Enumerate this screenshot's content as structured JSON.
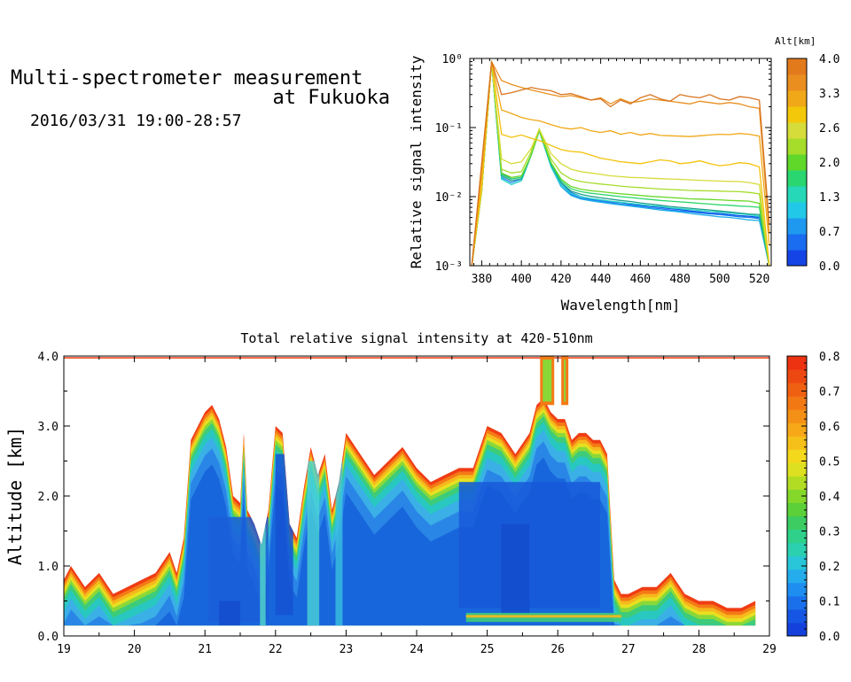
{
  "header": {
    "title_line1": "Multi-spectrometer measurement",
    "title_line2": "at Fukuoka",
    "date_range": "2016/03/31 19:00-28:57"
  },
  "chart_data": [
    {
      "type": "line",
      "title": "",
      "xlabel": "Wavelength[nm]",
      "ylabel": "Relative signal intensity",
      "yscale": "log",
      "xlim": [
        374,
        526
      ],
      "ylim": [
        0.001,
        1
      ],
      "x_ticks": [
        "380",
        "400",
        "420",
        "440",
        "460",
        "480",
        "500",
        "520"
      ],
      "y_ticks": [
        "10⁻³",
        "10⁻²",
        "10⁻¹",
        "10⁰"
      ],
      "legend_title": "Alt[km]",
      "colorbar_labels": [
        "0.0",
        "0.7",
        "1.3",
        "2.0",
        "2.6",
        "3.3",
        "4.0"
      ],
      "x": [
        375,
        380,
        385,
        390,
        395,
        400,
        405,
        409,
        415,
        420,
        425,
        430,
        435,
        440,
        445,
        450,
        455,
        460,
        465,
        470,
        475,
        480,
        485,
        490,
        495,
        500,
        505,
        510,
        515,
        520,
        525
      ],
      "series": [
        {
          "color": "#0c4fe8",
          "values": [
            0.001,
            0.012,
            0.9,
            0.022,
            0.018,
            0.019,
            0.04,
            0.09,
            0.03,
            0.016,
            0.0115,
            0.01,
            0.0093,
            0.0089,
            0.0085,
            0.0082,
            0.0078,
            0.0075,
            0.0072,
            0.007,
            0.0067,
            0.0065,
            0.0062,
            0.006,
            0.0058,
            0.0057,
            0.0055,
            0.0053,
            0.0052,
            0.005,
            0.001
          ]
        },
        {
          "color": "#1a7ef0",
          "values": [
            0.001,
            0.012,
            0.9,
            0.019,
            0.016,
            0.018,
            0.04,
            0.09,
            0.028,
            0.015,
            0.0108,
            0.0095,
            0.009,
            0.0086,
            0.0082,
            0.0078,
            0.0075,
            0.0072,
            0.0069,
            0.0067,
            0.0064,
            0.0062,
            0.006,
            0.0058,
            0.0056,
            0.0055,
            0.0053,
            0.0051,
            0.005,
            0.0048,
            0.001
          ]
        },
        {
          "color": "#1fb0ea",
          "values": [
            0.001,
            0.012,
            0.9,
            0.018,
            0.015,
            0.017,
            0.04,
            0.09,
            0.027,
            0.014,
            0.0104,
            0.0092,
            0.0087,
            0.0083,
            0.0079,
            0.0076,
            0.0073,
            0.007,
            0.0067,
            0.0064,
            0.0062,
            0.006,
            0.0057,
            0.0055,
            0.0053,
            0.0051,
            0.005,
            0.0048,
            0.0046,
            0.0045,
            0.001
          ]
        },
        {
          "color": "#26d8c8",
          "values": [
            0.001,
            0.012,
            0.9,
            0.018,
            0.015,
            0.017,
            0.04,
            0.09,
            0.027,
            0.015,
            0.0112,
            0.01,
            0.0094,
            0.009,
            0.0086,
            0.0083,
            0.008,
            0.0077,
            0.0074,
            0.0072,
            0.0069,
            0.0067,
            0.0065,
            0.0063,
            0.0061,
            0.006,
            0.0058,
            0.0056,
            0.0055,
            0.0052,
            0.001
          ]
        },
        {
          "color": "#1f9e8f",
          "values": [
            0.001,
            0.012,
            0.9,
            0.02,
            0.017,
            0.018,
            0.04,
            0.09,
            0.029,
            0.016,
            0.012,
            0.0108,
            0.0101,
            0.0096,
            0.0092,
            0.0088,
            0.0085,
            0.0081,
            0.0078,
            0.0075,
            0.0072,
            0.007,
            0.0068,
            0.0066,
            0.0064,
            0.0062,
            0.006,
            0.0058,
            0.0056,
            0.0055,
            0.001
          ]
        },
        {
          "color": "#2ad66b",
          "values": [
            0.001,
            0.012,
            0.9,
            0.021,
            0.018,
            0.019,
            0.04,
            0.09,
            0.03,
            0.017,
            0.013,
            0.0118,
            0.0112,
            0.0108,
            0.0104,
            0.01,
            0.0097,
            0.0094,
            0.0091,
            0.0088,
            0.0086,
            0.0084,
            0.0082,
            0.008,
            0.0078,
            0.0076,
            0.0075,
            0.0073,
            0.0072,
            0.007,
            0.001
          ]
        },
        {
          "color": "#6ad82a",
          "values": [
            0.001,
            0.012,
            0.9,
            0.022,
            0.019,
            0.02,
            0.04,
            0.09,
            0.031,
            0.018,
            0.014,
            0.0128,
            0.0122,
            0.0118,
            0.0114,
            0.011,
            0.0107,
            0.0104,
            0.0101,
            0.0099,
            0.0097,
            0.0095,
            0.0093,
            0.0092,
            0.0091,
            0.009,
            0.0088,
            0.0087,
            0.0086,
            0.008,
            0.001
          ]
        },
        {
          "color": "#a6dc2a",
          "values": [
            0.001,
            0.012,
            0.9,
            0.025,
            0.022,
            0.023,
            0.045,
            0.095,
            0.035,
            0.022,
            0.018,
            0.0165,
            0.0158,
            0.0152,
            0.0147,
            0.0142,
            0.0138,
            0.0135,
            0.0132,
            0.0129,
            0.0127,
            0.0125,
            0.0123,
            0.0122,
            0.0121,
            0.012,
            0.0119,
            0.0118,
            0.0115,
            0.011,
            0.001
          ]
        },
        {
          "color": "#d6dc3a",
          "values": [
            0.001,
            0.012,
            0.9,
            0.035,
            0.03,
            0.032,
            0.05,
            0.095,
            0.042,
            0.03,
            0.025,
            0.023,
            0.022,
            0.021,
            0.02,
            0.0195,
            0.019,
            0.0188,
            0.0185,
            0.0182,
            0.018,
            0.0178,
            0.0175,
            0.0172,
            0.017,
            0.0168,
            0.0166,
            0.0165,
            0.016,
            0.015,
            0.001
          ]
        },
        {
          "color": "#f4c20a",
          "values": [
            0.001,
            0.014,
            0.9,
            0.08,
            0.072,
            0.078,
            0.07,
            0.065,
            0.055,
            0.048,
            0.045,
            0.044,
            0.04,
            0.036,
            0.034,
            0.032,
            0.031,
            0.03,
            0.032,
            0.034,
            0.033,
            0.03,
            0.031,
            0.033,
            0.03,
            0.028,
            0.029,
            0.031,
            0.03,
            0.027,
            0.001
          ]
        },
        {
          "color": "#f0a818",
          "values": [
            0.001,
            0.02,
            0.9,
            0.18,
            0.16,
            0.14,
            0.13,
            0.125,
            0.11,
            0.1,
            0.095,
            0.1,
            0.09,
            0.085,
            0.09,
            0.08,
            0.085,
            0.078,
            0.082,
            0.077,
            0.076,
            0.075,
            0.074,
            0.076,
            0.078,
            0.08,
            0.079,
            0.082,
            0.08,
            0.075,
            0.002
          ]
        },
        {
          "color": "#e89020",
          "values": [
            0.001,
            0.03,
            0.9,
            0.48,
            0.42,
            0.38,
            0.35,
            0.33,
            0.3,
            0.28,
            0.29,
            0.27,
            0.25,
            0.27,
            0.22,
            0.26,
            0.23,
            0.24,
            0.26,
            0.25,
            0.24,
            0.23,
            0.22,
            0.24,
            0.23,
            0.22,
            0.23,
            0.22,
            0.2,
            0.19,
            0.003
          ]
        },
        {
          "color": "#d8741e",
          "values": [
            0.001,
            0.03,
            0.9,
            0.3,
            0.32,
            0.35,
            0.38,
            0.36,
            0.34,
            0.3,
            0.31,
            0.28,
            0.25,
            0.26,
            0.2,
            0.25,
            0.22,
            0.27,
            0.3,
            0.26,
            0.24,
            0.3,
            0.28,
            0.27,
            0.3,
            0.26,
            0.25,
            0.28,
            0.27,
            0.25,
            0.004
          ]
        }
      ]
    },
    {
      "type": "heatmap",
      "title": "Total relative signal intensity at 420-510nm",
      "xlabel": "",
      "ylabel": "Altitude [km]",
      "xlim": [
        19,
        29
      ],
      "ylim": [
        0,
        4
      ],
      "x_ticks": [
        "19",
        "20",
        "21",
        "22",
        "23",
        "24",
        "25",
        "26",
        "27",
        "28",
        "29"
      ],
      "y_ticks": [
        "0.0",
        "1.0",
        "2.0",
        "3.0",
        "4.0"
      ],
      "colorbar_labels": [
        "0.0",
        "0.1",
        "0.2",
        "0.3",
        "0.4",
        "0.5",
        "0.6",
        "0.7",
        "0.8"
      ],
      "cloud_base_km": 0.15,
      "cloud_top_profile_km": {
        "time": [
          19.0,
          19.1,
          19.3,
          19.5,
          19.7,
          19.9,
          20.1,
          20.3,
          20.5,
          20.6,
          20.7,
          20.8,
          20.9,
          21.0,
          21.1,
          21.2,
          21.3,
          21.4,
          21.5,
          21.55,
          21.6,
          21.7,
          21.8,
          21.9,
          22.0,
          22.1,
          22.2,
          22.3,
          22.4,
          22.5,
          22.6,
          22.7,
          22.8,
          22.9,
          23.0,
          23.2,
          23.4,
          23.6,
          23.8,
          24.0,
          24.2,
          24.4,
          24.6,
          24.8,
          25.0,
          25.2,
          25.4,
          25.6,
          25.7,
          25.8,
          25.9,
          26.0,
          26.1,
          26.2,
          26.3,
          26.4,
          26.5,
          26.6,
          26.7,
          26.8,
          26.9,
          27.0,
          27.2,
          27.4,
          27.6,
          27.8,
          28.0,
          28.2,
          28.4,
          28.6,
          28.8
        ],
        "top": [
          0.8,
          1.0,
          0.7,
          0.9,
          0.6,
          0.7,
          0.8,
          0.9,
          1.2,
          0.9,
          1.4,
          2.8,
          3.0,
          3.2,
          3.3,
          3.1,
          2.7,
          2.0,
          1.9,
          2.9,
          1.8,
          1.6,
          1.3,
          1.8,
          3.0,
          2.9,
          1.6,
          1.4,
          2.1,
          2.7,
          2.3,
          2.6,
          1.8,
          2.2,
          2.9,
          2.6,
          2.3,
          2.5,
          2.7,
          2.4,
          2.2,
          2.3,
          2.4,
          2.4,
          3.0,
          2.9,
          2.6,
          2.9,
          3.3,
          3.4,
          3.2,
          3.1,
          3.1,
          2.8,
          2.9,
          2.9,
          2.8,
          2.8,
          2.6,
          0.8,
          0.6,
          0.6,
          0.7,
          0.7,
          0.9,
          0.6,
          0.5,
          0.5,
          0.4,
          0.4,
          0.5
        ]
      },
      "near_top_returns_km": 4.0
    }
  ]
}
